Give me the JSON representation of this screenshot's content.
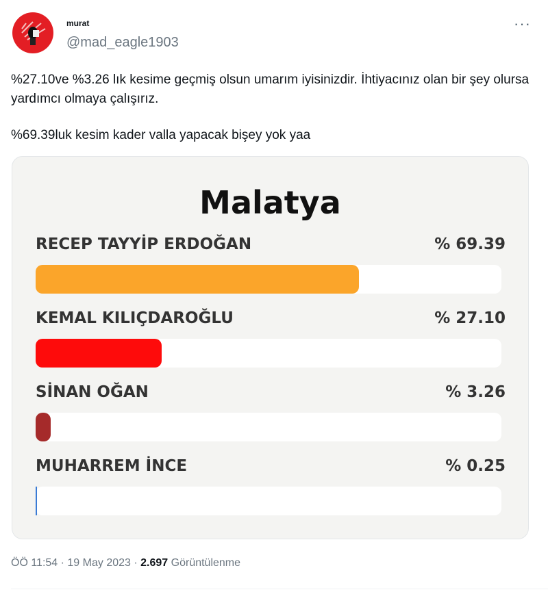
{
  "tweet": {
    "author_name": "murat",
    "handle": "@mad_eagle1903",
    "more_icon": "more-horizontal-icon",
    "text_lines": [
      "%27.10ve %3.26 lık kesime geçmiş olsun umarım iyisinizdir. İhtiyacınız olan bir şey olursa yardımcı olmaya çalışırız.",
      "%69.39luk kesim kader valla yapacak bişey yok yaa"
    ],
    "time": "ÖÖ 11:54",
    "date": "19 May 2023",
    "views": "2.697",
    "views_label": "Görüntülenme"
  },
  "chart_data": {
    "type": "bar",
    "title": "Malatya",
    "categories": [
      "RECEP TAYYİP ERDOĞAN",
      "KEMAL KILIÇDAROĞLU",
      "SİNAN OĞAN",
      "MUHARREM İNCE"
    ],
    "labels": [
      "% 69.39",
      "% 27.10",
      "% 3.26",
      "% 0.25"
    ],
    "values": [
      69.39,
      27.1,
      3.26,
      0.25
    ],
    "colors": [
      "#fba52a",
      "#fe0b0b",
      "#a52a2a",
      "#3a7bd5"
    ],
    "xlim": [
      0,
      100
    ]
  }
}
